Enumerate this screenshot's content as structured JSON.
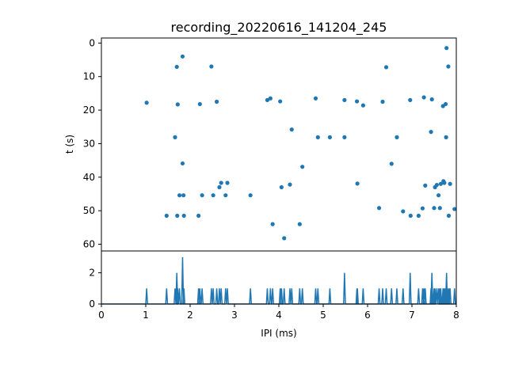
{
  "chart_data": {
    "title": "recording_20220616_141204_245",
    "series_color": "#1f77b4",
    "scatter": {
      "type": "scatter",
      "ylabel": "t (s)",
      "xlim": [
        0,
        8
      ],
      "ylim": [
        62,
        -1.5
      ],
      "y_ticks": [
        0,
        10,
        20,
        30,
        40,
        50,
        60
      ],
      "points": [
        [
          1.02,
          17.8
        ],
        [
          1.47,
          51.5
        ],
        [
          1.66,
          28.1
        ],
        [
          1.7,
          7.1
        ],
        [
          1.71,
          51.5
        ],
        [
          1.72,
          18.3
        ],
        [
          1.76,
          45.4
        ],
        [
          1.83,
          4.0
        ],
        [
          1.83,
          35.9
        ],
        [
          1.85,
          45.4
        ],
        [
          1.86,
          51.5
        ],
        [
          2.19,
          51.5
        ],
        [
          2.22,
          18.2
        ],
        [
          2.27,
          45.4
        ],
        [
          2.48,
          7.0
        ],
        [
          2.52,
          45.4
        ],
        [
          2.6,
          17.5
        ],
        [
          2.66,
          43.0
        ],
        [
          2.7,
          41.7
        ],
        [
          2.8,
          45.4
        ],
        [
          2.84,
          41.7
        ],
        [
          3.36,
          45.4
        ],
        [
          3.74,
          17.0
        ],
        [
          3.81,
          16.5
        ],
        [
          3.86,
          54.0
        ],
        [
          4.03,
          17.4
        ],
        [
          4.06,
          43.0
        ],
        [
          4.12,
          58.2
        ],
        [
          4.25,
          42.2
        ],
        [
          4.29,
          25.8
        ],
        [
          4.47,
          54.0
        ],
        [
          4.53,
          36.9
        ],
        [
          4.83,
          16.5
        ],
        [
          4.88,
          28.1
        ],
        [
          5.15,
          28.1
        ],
        [
          5.48,
          17.0
        ],
        [
          5.48,
          28.1
        ],
        [
          5.76,
          17.4
        ],
        [
          5.77,
          41.9
        ],
        [
          5.9,
          18.6
        ],
        [
          6.26,
          49.2
        ],
        [
          6.34,
          17.5
        ],
        [
          6.42,
          7.2
        ],
        [
          6.54,
          36.0
        ],
        [
          6.66,
          28.1
        ],
        [
          6.8,
          50.2
        ],
        [
          6.96,
          17.0
        ],
        [
          6.97,
          51.5
        ],
        [
          7.15,
          51.5
        ],
        [
          7.24,
          49.3
        ],
        [
          7.27,
          16.2
        ],
        [
          7.3,
          42.5
        ],
        [
          7.43,
          26.5
        ],
        [
          7.45,
          16.8
        ],
        [
          7.5,
          49.2
        ],
        [
          7.52,
          43.0
        ],
        [
          7.56,
          42.3
        ],
        [
          7.6,
          45.4
        ],
        [
          7.63,
          49.2
        ],
        [
          7.65,
          42.0
        ],
        [
          7.7,
          18.8
        ],
        [
          7.71,
          41.2
        ],
        [
          7.73,
          41.7
        ],
        [
          7.76,
          18.2
        ],
        [
          7.77,
          28.1
        ],
        [
          7.78,
          1.5
        ],
        [
          7.82,
          7.0
        ],
        [
          7.83,
          51.5
        ],
        [
          7.86,
          42.0
        ],
        [
          7.96,
          49.5
        ]
      ]
    },
    "histogram": {
      "type": "line",
      "xlabel": "IPI (ms)",
      "xlim": [
        0,
        8
      ],
      "ylim": [
        0,
        3.4
      ],
      "x_ticks": [
        0,
        1,
        2,
        3,
        4,
        5,
        6,
        7,
        8
      ],
      "y_ticks": [
        0,
        2
      ],
      "peaks": [
        [
          1.02,
          1
        ],
        [
          1.47,
          1
        ],
        [
          1.66,
          1
        ],
        [
          1.7,
          2
        ],
        [
          1.72,
          1
        ],
        [
          1.76,
          1
        ],
        [
          1.83,
          3
        ],
        [
          1.86,
          1
        ],
        [
          2.19,
          1
        ],
        [
          2.22,
          1
        ],
        [
          2.27,
          1
        ],
        [
          2.48,
          1
        ],
        [
          2.52,
          1
        ],
        [
          2.6,
          1
        ],
        [
          2.66,
          1
        ],
        [
          2.7,
          1
        ],
        [
          2.8,
          1
        ],
        [
          2.84,
          1
        ],
        [
          3.36,
          1
        ],
        [
          3.74,
          1
        ],
        [
          3.81,
          1
        ],
        [
          3.86,
          1
        ],
        [
          4.03,
          1
        ],
        [
          4.06,
          1
        ],
        [
          4.12,
          1
        ],
        [
          4.25,
          1
        ],
        [
          4.29,
          1
        ],
        [
          4.47,
          1
        ],
        [
          4.53,
          1
        ],
        [
          4.83,
          1
        ],
        [
          4.88,
          1
        ],
        [
          5.15,
          1
        ],
        [
          5.48,
          2
        ],
        [
          5.76,
          1
        ],
        [
          5.77,
          1
        ],
        [
          5.9,
          1
        ],
        [
          6.26,
          1
        ],
        [
          6.34,
          1
        ],
        [
          6.42,
          1
        ],
        [
          6.54,
          1
        ],
        [
          6.66,
          1
        ],
        [
          6.8,
          1
        ],
        [
          6.96,
          2
        ],
        [
          7.15,
          1
        ],
        [
          7.24,
          1
        ],
        [
          7.27,
          1
        ],
        [
          7.3,
          1
        ],
        [
          7.43,
          1
        ],
        [
          7.45,
          2
        ],
        [
          7.5,
          1
        ],
        [
          7.52,
          1
        ],
        [
          7.56,
          1
        ],
        [
          7.6,
          1
        ],
        [
          7.63,
          1
        ],
        [
          7.65,
          1
        ],
        [
          7.7,
          1
        ],
        [
          7.71,
          1
        ],
        [
          7.73,
          1
        ],
        [
          7.76,
          1
        ],
        [
          7.78,
          2
        ],
        [
          7.82,
          1
        ],
        [
          7.83,
          1
        ],
        [
          7.86,
          1
        ],
        [
          7.96,
          1
        ]
      ]
    }
  }
}
